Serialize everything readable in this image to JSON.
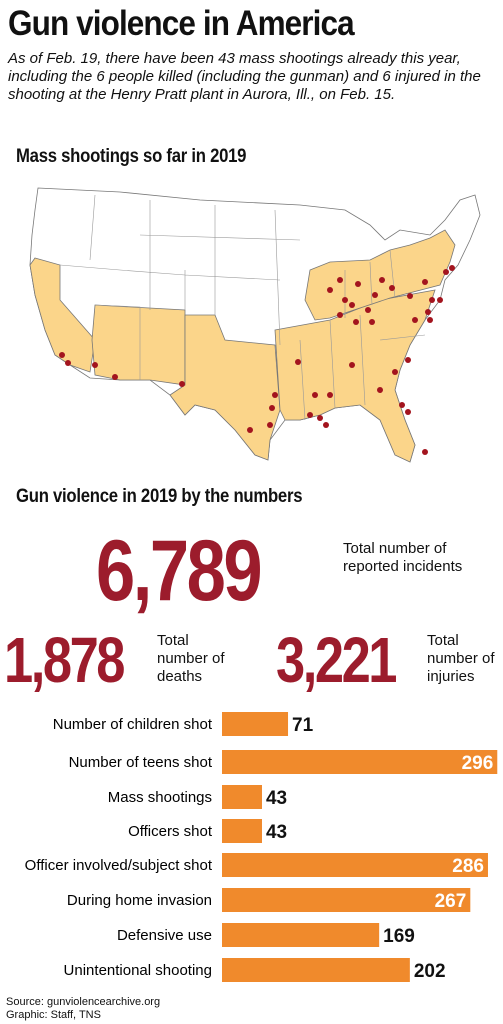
{
  "header": {
    "title": "Gun violence in America",
    "subtitle": "As of Feb. 19, there have been 43 mass shootings already this year, including the 6 people killed (including the gunman) and 6 injured in the shooting at the Henry Pratt plant in Aurora, Ill., on Feb. 15."
  },
  "map": {
    "title": "Mass shootings so far in 2019"
  },
  "stats": {
    "title": "Gun violence in 2019 by the numbers",
    "items": [
      {
        "number": "6,789",
        "label": "Total number of reported incidents"
      },
      {
        "number": "1,878",
        "label": "Total number of deaths"
      },
      {
        "number": "3,221",
        "label": "Total number of injuries"
      }
    ]
  },
  "chart_data": {
    "type": "bar",
    "orientation": "horizontal",
    "color": "#f08a2c",
    "categories": [
      "Number of children shot",
      "Number of teens shot",
      "Mass shootings",
      "Officers shot",
      "Officer involved/subject shot",
      "During home invasion",
      "Defensive use",
      "Unintentional shooting"
    ],
    "values": [
      71,
      296,
      43,
      43,
      286,
      267,
      169,
      202
    ]
  },
  "footer": {
    "source": "Source: gunviolencearchive.org",
    "credit": "Graphic: Staff, TNS"
  }
}
